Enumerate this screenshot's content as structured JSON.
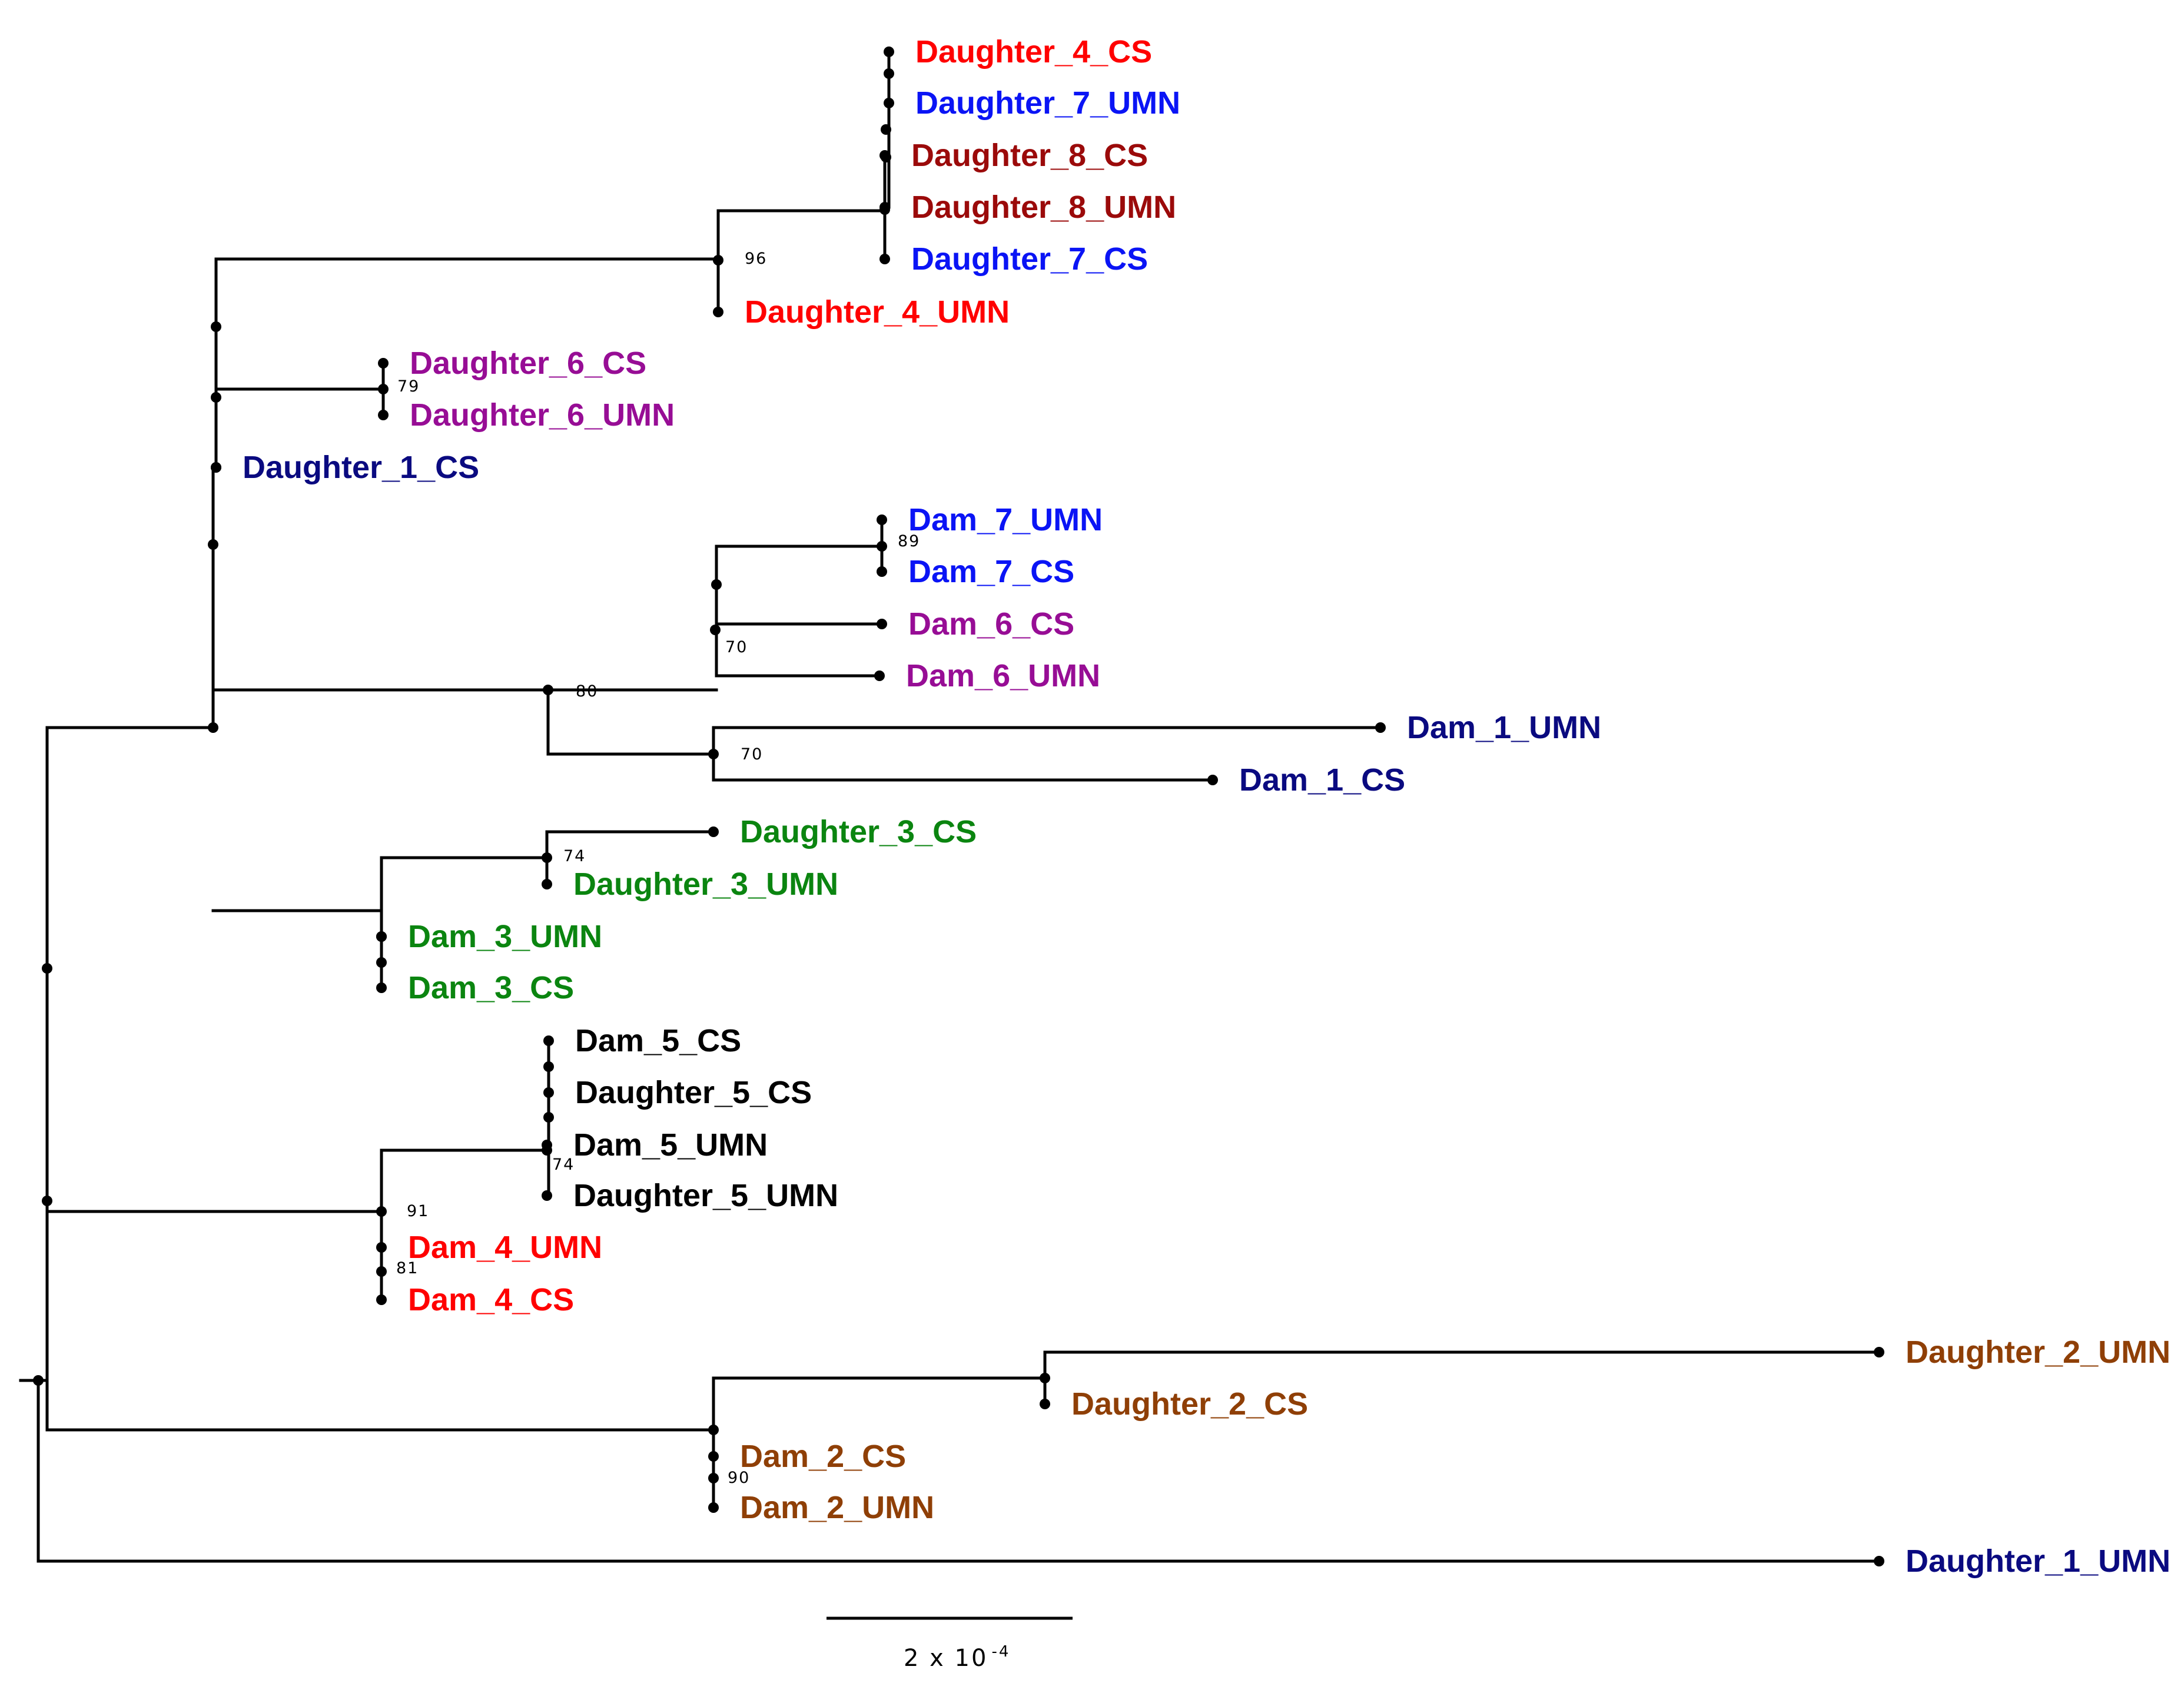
{
  "figure": {
    "type": "phylogenetic-tree",
    "scale_bar": {
      "label_base": "2 x 10",
      "label_exponent": "-4"
    }
  },
  "colors": {
    "red": "#ff0000",
    "blue": "#0a14f5",
    "darkred": "#9b0a0a",
    "purple": "#970d95",
    "navy": "#0a0a80",
    "green": "#0b8510",
    "black": "#000000",
    "brown": "#8f3f06"
  },
  "leaves": [
    {
      "name": "Daughter_4_CS",
      "color": "red"
    },
    {
      "name": "Daughter_7_UMN",
      "color": "blue"
    },
    {
      "name": "Daughter_8_CS",
      "color": "darkred"
    },
    {
      "name": "Daughter_8_UMN",
      "color": "darkred"
    },
    {
      "name": "Daughter_7_CS",
      "color": "blue"
    },
    {
      "name": "Daughter_4_UMN",
      "color": "red"
    },
    {
      "name": "Daughter_6_CS",
      "color": "purple"
    },
    {
      "name": "Daughter_6_UMN",
      "color": "purple"
    },
    {
      "name": "Daughter_1_CS",
      "color": "navy"
    },
    {
      "name": "Dam_7_UMN",
      "color": "blue"
    },
    {
      "name": "Dam_7_CS",
      "color": "blue"
    },
    {
      "name": "Dam_6_CS",
      "color": "purple"
    },
    {
      "name": "Dam_6_UMN",
      "color": "purple"
    },
    {
      "name": "Dam_1_UMN",
      "color": "navy"
    },
    {
      "name": "Dam_1_CS",
      "color": "navy"
    },
    {
      "name": "Daughter_3_CS",
      "color": "green"
    },
    {
      "name": "Daughter_3_UMN",
      "color": "green"
    },
    {
      "name": "Dam_3_UMN",
      "color": "green"
    },
    {
      "name": "Dam_3_CS",
      "color": "green"
    },
    {
      "name": "Dam_5_CS",
      "color": "black"
    },
    {
      "name": "Daughter_5_CS",
      "color": "black"
    },
    {
      "name": "Dam_5_UMN",
      "color": "black"
    },
    {
      "name": "Daughter_5_UMN",
      "color": "black"
    },
    {
      "name": "Dam_4_UMN",
      "color": "red"
    },
    {
      "name": "Dam_4_CS",
      "color": "red"
    },
    {
      "name": "Daughter_2_UMN",
      "color": "brown"
    },
    {
      "name": "Daughter_2_CS",
      "color": "brown"
    },
    {
      "name": "Dam_2_CS",
      "color": "brown"
    },
    {
      "name": "Dam_2_UMN",
      "color": "brown"
    },
    {
      "name": "Daughter_1_UMN",
      "color": "navy"
    }
  ],
  "support_values": [
    "96",
    "79",
    "89",
    "70",
    "80",
    "70",
    "74",
    "74",
    "91",
    "81",
    "90"
  ]
}
